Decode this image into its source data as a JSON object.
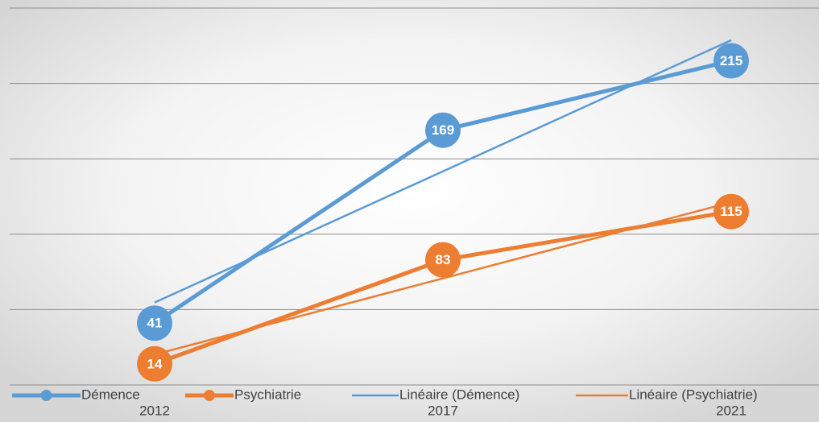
{
  "chart_data": {
    "type": "line",
    "categories": [
      "2012",
      "2017",
      "2021"
    ],
    "series": [
      {
        "name": "Démence",
        "color": "#5b9bd5",
        "values": [
          41,
          169,
          215
        ],
        "markers": true
      },
      {
        "name": "Psychiatrie",
        "color": "#ed7d31",
        "values": [
          14,
          83,
          115
        ],
        "markers": true
      },
      {
        "name": "Linéaire (Démence)",
        "color": "#5b9bd5",
        "values": [
          54.7,
          141.7,
          228.7
        ],
        "markers": false
      },
      {
        "name": "Linéaire (Psychiatrie)",
        "color": "#ed7d31",
        "values": [
          20.2,
          70.7,
          121.2
        ],
        "markers": false
      }
    ],
    "ylim": [
      0,
      250
    ],
    "yticks": [
      0,
      50,
      100,
      150,
      200,
      250
    ],
    "grid": true,
    "legend": "bottom"
  }
}
